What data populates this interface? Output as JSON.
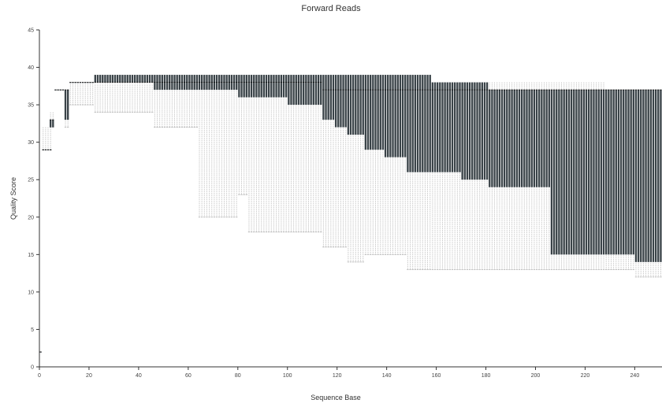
{
  "chart_data": {
    "type": "box",
    "title": "Forward Reads",
    "xlabel": "Sequence Base",
    "ylabel": "Quality Score",
    "xlim": [
      0,
      251
    ],
    "ylim": [
      0,
      45
    ],
    "xticks": [
      0,
      20,
      40,
      60,
      80,
      100,
      120,
      140,
      160,
      180,
      200,
      220,
      240
    ],
    "yticks": [
      0,
      5,
      10,
      15,
      20,
      25,
      30,
      35,
      40,
      45
    ],
    "grid": false,
    "colors": {
      "box_fill": "#3a4348",
      "whisker": "#c9c9c9",
      "axis": "#333333"
    },
    "segments": [
      {
        "from": 1,
        "to": 1,
        "whislo": 2,
        "q1": 2,
        "med": 2,
        "q3": 2,
        "whishi": 2
      },
      {
        "from": 2,
        "to": 5,
        "whislo": 29,
        "q1": 29,
        "med": 29,
        "q3": 29,
        "whishi": 32
      },
      {
        "from": 5,
        "to": 6,
        "whislo": 32,
        "q1": 32,
        "med": 33,
        "q3": 33,
        "whishi": 34
      },
      {
        "from": 7,
        "to": 10,
        "whislo": 37,
        "q1": 37,
        "med": 37,
        "q3": 37,
        "whishi": 37
      },
      {
        "from": 11,
        "to": 12,
        "whislo": 32,
        "q1": 33,
        "med": 37,
        "q3": 37,
        "whishi": 37
      },
      {
        "from": 13,
        "to": 22,
        "whislo": 35,
        "q1": 38,
        "med": 38,
        "q3": 38,
        "whishi": 38
      },
      {
        "from": 23,
        "to": 30,
        "whislo": 34,
        "q1": 38,
        "med": 38,
        "q3": 39,
        "whishi": 39
      },
      {
        "from": 31,
        "to": 46,
        "whislo": 34,
        "q1": 38,
        "med": 38,
        "q3": 39,
        "whishi": 39
      },
      {
        "from": 47,
        "to": 59,
        "whislo": 32,
        "q1": 37,
        "med": 38,
        "q3": 39,
        "whishi": 39
      },
      {
        "from": 60,
        "to": 64,
        "whislo": 32,
        "q1": 37,
        "med": 38,
        "q3": 39,
        "whishi": 39
      },
      {
        "from": 65,
        "to": 66,
        "whislo": 20,
        "q1": 37,
        "med": 38,
        "q3": 39,
        "whishi": 39
      },
      {
        "from": 67,
        "to": 72,
        "whislo": 20,
        "q1": 37,
        "med": 38,
        "q3": 39,
        "whishi": 39
      },
      {
        "from": 73,
        "to": 80,
        "whislo": 20,
        "q1": 37,
        "med": 38,
        "q3": 39,
        "whishi": 39
      },
      {
        "from": 81,
        "to": 84,
        "whislo": 23,
        "q1": 36,
        "med": 38,
        "q3": 39,
        "whishi": 39
      },
      {
        "from": 85,
        "to": 90,
        "whislo": 18,
        "q1": 36,
        "med": 38,
        "q3": 39,
        "whishi": 39
      },
      {
        "from": 91,
        "to": 100,
        "whislo": 18,
        "q1": 36,
        "med": 38,
        "q3": 39,
        "whishi": 39
      },
      {
        "from": 101,
        "to": 108,
        "whislo": 18,
        "q1": 35,
        "med": 38,
        "q3": 39,
        "whishi": 39
      },
      {
        "from": 109,
        "to": 114,
        "whislo": 18,
        "q1": 35,
        "med": 38,
        "q3": 39,
        "whishi": 39
      },
      {
        "from": 115,
        "to": 119,
        "whislo": 16,
        "q1": 33,
        "med": 37,
        "q3": 39,
        "whishi": 39
      },
      {
        "from": 120,
        "to": 124,
        "whislo": 16,
        "q1": 32,
        "med": 37,
        "q3": 39,
        "whishi": 39
      },
      {
        "from": 125,
        "to": 131,
        "whislo": 14,
        "q1": 31,
        "med": 37,
        "q3": 39,
        "whishi": 39
      },
      {
        "from": 132,
        "to": 139,
        "whislo": 15,
        "q1": 29,
        "med": 37,
        "q3": 39,
        "whishi": 39
      },
      {
        "from": 140,
        "to": 148,
        "whislo": 15,
        "q1": 28,
        "med": 37,
        "q3": 39,
        "whishi": 39
      },
      {
        "from": 149,
        "to": 158,
        "whislo": 13,
        "q1": 26,
        "med": 37,
        "q3": 39,
        "whishi": 39
      },
      {
        "from": 159,
        "to": 170,
        "whislo": 13,
        "q1": 26,
        "med": 37,
        "q3": 38,
        "whishi": 38
      },
      {
        "from": 171,
        "to": 181,
        "whislo": 13,
        "q1": 25,
        "med": 37,
        "q3": 38,
        "whishi": 38
      },
      {
        "from": 182,
        "to": 193,
        "whislo": 13,
        "q1": 24,
        "med": 37,
        "q3": 37,
        "whishi": 38
      },
      {
        "from": 194,
        "to": 206,
        "whislo": 13,
        "q1": 24,
        "med": 37,
        "q3": 37,
        "whishi": 38
      },
      {
        "from": 207,
        "to": 216,
        "whislo": 13,
        "q1": 15,
        "med": 37,
        "q3": 37,
        "whishi": 38
      },
      {
        "from": 217,
        "to": 228,
        "whislo": 13,
        "q1": 15,
        "med": 37,
        "q3": 37,
        "whishi": 38
      },
      {
        "from": 229,
        "to": 240,
        "whislo": 13,
        "q1": 15,
        "med": 37,
        "q3": 37,
        "whishi": 37
      },
      {
        "from": 241,
        "to": 251,
        "whislo": 12,
        "q1": 14,
        "med": 37,
        "q3": 37,
        "whishi": 37
      }
    ]
  }
}
